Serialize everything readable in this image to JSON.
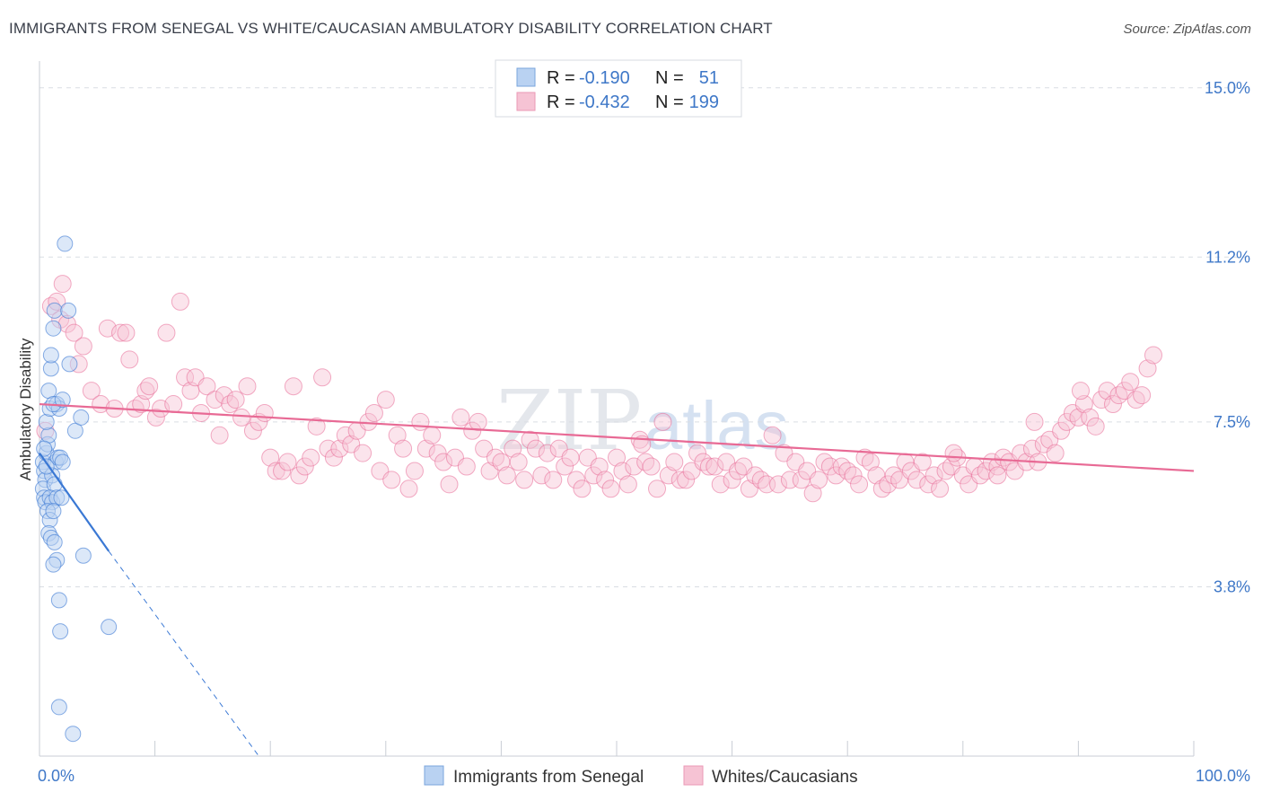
{
  "title": "IMMIGRANTS FROM SENEGAL VS WHITE/CAUCASIAN AMBULATORY DISABILITY CORRELATION CHART",
  "source": "Source: ZipAtlas.com",
  "watermark": {
    "zip": "ZIP",
    "atlas": "atlas"
  },
  "colors": {
    "blue": "#3a78d4",
    "blue_fill": "#b9d2f2",
    "pink": "#e86a95",
    "pink_fill": "#f6c3d4",
    "tick": "#3f78c8",
    "grid": "#d9dde3"
  },
  "chart_data": {
    "type": "scatter",
    "ylabel": "Ambulatory Disability",
    "xlim": [
      0,
      100
    ],
    "ylim": [
      0,
      15.6
    ],
    "y_ticks": [
      3.8,
      7.5,
      11.2,
      15.0
    ],
    "y_tick_labels": [
      "3.8%",
      "7.5%",
      "11.2%",
      "15.0%"
    ],
    "x_tick_labels": [
      "0.0%",
      "100.0%"
    ],
    "legend": [
      {
        "r_label": "R =",
        "r_value": "-0.190",
        "n_label": "N =",
        "n_value": "51"
      },
      {
        "r_label": "R =",
        "r_value": "-0.432",
        "n_label": "N =",
        "n_value": "199"
      }
    ],
    "series": [
      {
        "name": "Immigrants from Senegal",
        "trend": {
          "x0": 0,
          "y0": 6.8,
          "x1": 6.0,
          "y1": 4.6,
          "dash_to_x": 19.0
        },
        "points": [
          [
            0.3,
            6.6
          ],
          [
            0.4,
            6.4
          ],
          [
            0.5,
            6.2
          ],
          [
            0.6,
            6.8
          ],
          [
            0.3,
            6.0
          ],
          [
            0.4,
            5.8
          ],
          [
            0.5,
            5.7
          ],
          [
            0.7,
            7.0
          ],
          [
            0.8,
            7.2
          ],
          [
            0.6,
            7.5
          ],
          [
            0.9,
            7.8
          ],
          [
            0.8,
            8.2
          ],
          [
            1.0,
            8.7
          ],
          [
            1.0,
            9.0
          ],
          [
            1.2,
            9.6
          ],
          [
            1.3,
            10.0
          ],
          [
            1.5,
            7.9
          ],
          [
            1.7,
            7.8
          ],
          [
            1.2,
            7.9
          ],
          [
            1.4,
            6.6
          ],
          [
            1.6,
            6.7
          ],
          [
            1.8,
            6.7
          ],
          [
            1.1,
            6.3
          ],
          [
            1.3,
            6.1
          ],
          [
            0.9,
            5.8
          ],
          [
            1.1,
            5.7
          ],
          [
            1.5,
            5.8
          ],
          [
            1.9,
            5.8
          ],
          [
            0.7,
            5.5
          ],
          [
            0.9,
            5.3
          ],
          [
            1.2,
            5.5
          ],
          [
            0.8,
            5.0
          ],
          [
            1.0,
            4.9
          ],
          [
            1.3,
            4.8
          ],
          [
            1.5,
            4.4
          ],
          [
            1.2,
            4.3
          ],
          [
            2.2,
            11.5
          ],
          [
            2.0,
            8.0
          ],
          [
            2.5,
            10.0
          ],
          [
            2.6,
            8.8
          ],
          [
            3.1,
            7.3
          ],
          [
            3.6,
            7.6
          ],
          [
            3.8,
            4.5
          ],
          [
            1.7,
            3.5
          ],
          [
            1.8,
            2.8
          ],
          [
            6.0,
            2.9
          ],
          [
            1.7,
            1.1
          ],
          [
            2.9,
            0.5
          ],
          [
            0.4,
            6.9
          ],
          [
            0.6,
            6.5
          ],
          [
            2.0,
            6.6
          ]
        ]
      },
      {
        "name": "Whites/Caucasians",
        "trend": {
          "x0": 0,
          "y0": 7.9,
          "x1": 100,
          "y1": 6.4
        },
        "points": [
          [
            0.5,
            7.3
          ],
          [
            1.0,
            10.1
          ],
          [
            1.5,
            10.2
          ],
          [
            1.8,
            9.8
          ],
          [
            2.0,
            10.6
          ],
          [
            2.4,
            9.7
          ],
          [
            3.0,
            9.5
          ],
          [
            3.4,
            8.8
          ],
          [
            3.8,
            9.2
          ],
          [
            4.5,
            8.2
          ],
          [
            5.3,
            7.9
          ],
          [
            5.9,
            9.6
          ],
          [
            6.5,
            7.8
          ],
          [
            7.0,
            9.5
          ],
          [
            7.5,
            9.5
          ],
          [
            7.8,
            8.9
          ],
          [
            8.3,
            7.8
          ],
          [
            8.8,
            7.9
          ],
          [
            9.2,
            8.2
          ],
          [
            9.5,
            8.3
          ],
          [
            10.1,
            7.6
          ],
          [
            10.5,
            7.8
          ],
          [
            11.0,
            9.5
          ],
          [
            11.6,
            7.9
          ],
          [
            12.2,
            10.2
          ],
          [
            12.6,
            8.5
          ],
          [
            13.1,
            8.2
          ],
          [
            13.5,
            8.5
          ],
          [
            14.0,
            7.7
          ],
          [
            14.5,
            8.3
          ],
          [
            15.2,
            8.0
          ],
          [
            15.6,
            7.2
          ],
          [
            16.0,
            8.1
          ],
          [
            16.5,
            7.9
          ],
          [
            17.0,
            8.0
          ],
          [
            17.5,
            7.6
          ],
          [
            18.0,
            8.3
          ],
          [
            18.5,
            7.3
          ],
          [
            19.0,
            7.5
          ],
          [
            19.5,
            7.7
          ],
          [
            20.0,
            6.7
          ],
          [
            20.5,
            6.4
          ],
          [
            21.0,
            6.4
          ],
          [
            21.5,
            6.6
          ],
          [
            22.0,
            8.3
          ],
          [
            22.5,
            6.3
          ],
          [
            23.0,
            6.5
          ],
          [
            23.5,
            6.7
          ],
          [
            24.0,
            7.4
          ],
          [
            24.5,
            8.5
          ],
          [
            25.0,
            6.9
          ],
          [
            25.5,
            6.7
          ],
          [
            26.0,
            6.9
          ],
          [
            26.5,
            7.2
          ],
          [
            27.0,
            7.0
          ],
          [
            27.5,
            7.3
          ],
          [
            28.0,
            6.8
          ],
          [
            28.5,
            7.5
          ],
          [
            29.0,
            7.7
          ],
          [
            29.5,
            6.4
          ],
          [
            30.0,
            8.0
          ],
          [
            30.5,
            6.2
          ],
          [
            31.0,
            7.2
          ],
          [
            31.5,
            6.9
          ],
          [
            32.0,
            6.0
          ],
          [
            32.5,
            6.4
          ],
          [
            33.0,
            7.5
          ],
          [
            33.5,
            6.9
          ],
          [
            34.0,
            7.2
          ],
          [
            34.5,
            6.8
          ],
          [
            35.0,
            6.6
          ],
          [
            35.5,
            6.1
          ],
          [
            36.0,
            6.7
          ],
          [
            36.5,
            7.6
          ],
          [
            37.0,
            6.5
          ],
          [
            37.5,
            7.3
          ],
          [
            38.0,
            7.5
          ],
          [
            38.5,
            6.9
          ],
          [
            39.0,
            6.4
          ],
          [
            39.5,
            6.7
          ],
          [
            40.0,
            6.6
          ],
          [
            40.5,
            6.3
          ],
          [
            41.0,
            6.9
          ],
          [
            41.5,
            6.6
          ],
          [
            42.0,
            6.2
          ],
          [
            42.5,
            7.1
          ],
          [
            43.0,
            6.9
          ],
          [
            43.5,
            6.3
          ],
          [
            44.0,
            6.8
          ],
          [
            44.5,
            6.2
          ],
          [
            45.0,
            6.9
          ],
          [
            45.5,
            6.5
          ],
          [
            46.0,
            6.7
          ],
          [
            46.5,
            6.2
          ],
          [
            47.0,
            6.0
          ],
          [
            47.5,
            6.7
          ],
          [
            48.0,
            6.3
          ],
          [
            48.5,
            6.5
          ],
          [
            49.0,
            6.2
          ],
          [
            49.5,
            6.0
          ],
          [
            50.0,
            6.7
          ],
          [
            50.5,
            6.4
          ],
          [
            51.0,
            6.1
          ],
          [
            51.5,
            6.5
          ],
          [
            52.0,
            7.1
          ],
          [
            52.5,
            6.6
          ],
          [
            53.0,
            6.5
          ],
          [
            53.5,
            6.0
          ],
          [
            54.0,
            7.5
          ],
          [
            54.5,
            6.3
          ],
          [
            55.0,
            6.6
          ],
          [
            55.5,
            6.2
          ],
          [
            56.0,
            6.2
          ],
          [
            56.5,
            6.4
          ],
          [
            57.0,
            6.8
          ],
          [
            57.5,
            6.6
          ],
          [
            58.0,
            6.5
          ],
          [
            58.5,
            6.5
          ],
          [
            59.0,
            6.1
          ],
          [
            59.5,
            6.6
          ],
          [
            60.0,
            6.2
          ],
          [
            60.5,
            6.4
          ],
          [
            61.0,
            6.5
          ],
          [
            61.5,
            6.0
          ],
          [
            62.0,
            6.3
          ],
          [
            62.5,
            6.2
          ],
          [
            63.0,
            6.1
          ],
          [
            63.5,
            7.2
          ],
          [
            64.0,
            6.1
          ],
          [
            64.5,
            6.8
          ],
          [
            65.0,
            6.2
          ],
          [
            65.5,
            6.6
          ],
          [
            66.0,
            6.2
          ],
          [
            66.5,
            6.4
          ],
          [
            67.0,
            5.9
          ],
          [
            67.5,
            6.2
          ],
          [
            68.0,
            6.6
          ],
          [
            68.5,
            6.5
          ],
          [
            69.0,
            6.3
          ],
          [
            69.5,
            6.5
          ],
          [
            70.0,
            6.4
          ],
          [
            70.5,
            6.3
          ],
          [
            71.0,
            6.1
          ],
          [
            71.5,
            6.7
          ],
          [
            72.0,
            6.6
          ],
          [
            72.5,
            6.3
          ],
          [
            73.0,
            6.0
          ],
          [
            73.5,
            6.1
          ],
          [
            74.0,
            6.3
          ],
          [
            74.5,
            6.2
          ],
          [
            75.0,
            6.6
          ],
          [
            75.5,
            6.4
          ],
          [
            76.0,
            6.2
          ],
          [
            76.5,
            6.6
          ],
          [
            77.0,
            6.1
          ],
          [
            77.5,
            6.3
          ],
          [
            78.0,
            6.0
          ],
          [
            78.5,
            6.4
          ],
          [
            79.0,
            6.5
          ],
          [
            79.5,
            6.7
          ],
          [
            80.0,
            6.3
          ],
          [
            80.5,
            6.1
          ],
          [
            81.0,
            6.5
          ],
          [
            81.5,
            6.3
          ],
          [
            82.0,
            6.4
          ],
          [
            82.5,
            6.6
          ],
          [
            83.0,
            6.5
          ],
          [
            83.5,
            6.7
          ],
          [
            84.0,
            6.6
          ],
          [
            84.5,
            6.4
          ],
          [
            85.0,
            6.8
          ],
          [
            85.5,
            6.6
          ],
          [
            86.0,
            6.9
          ],
          [
            86.5,
            6.6
          ],
          [
            87.0,
            7.0
          ],
          [
            87.5,
            7.1
          ],
          [
            88.0,
            6.8
          ],
          [
            88.5,
            7.3
          ],
          [
            89.0,
            7.5
          ],
          [
            89.5,
            7.7
          ],
          [
            90.0,
            7.6
          ],
          [
            90.5,
            7.9
          ],
          [
            91.0,
            7.6
          ],
          [
            91.5,
            7.4
          ],
          [
            92.0,
            8.0
          ],
          [
            92.5,
            8.2
          ],
          [
            93.0,
            7.9
          ],
          [
            93.5,
            8.1
          ],
          [
            94.0,
            8.2
          ],
          [
            94.5,
            8.4
          ],
          [
            95.0,
            8.0
          ],
          [
            95.5,
            8.1
          ],
          [
            96.0,
            8.7
          ],
          [
            96.5,
            9.0
          ],
          [
            90.2,
            8.2
          ],
          [
            86.2,
            7.5
          ],
          [
            83.0,
            6.3
          ],
          [
            79.2,
            6.8
          ],
          [
            52.2,
            7.0
          ]
        ]
      }
    ]
  },
  "bottom_legend": [
    "Immigrants from Senegal",
    "Whites/Caucasians"
  ]
}
